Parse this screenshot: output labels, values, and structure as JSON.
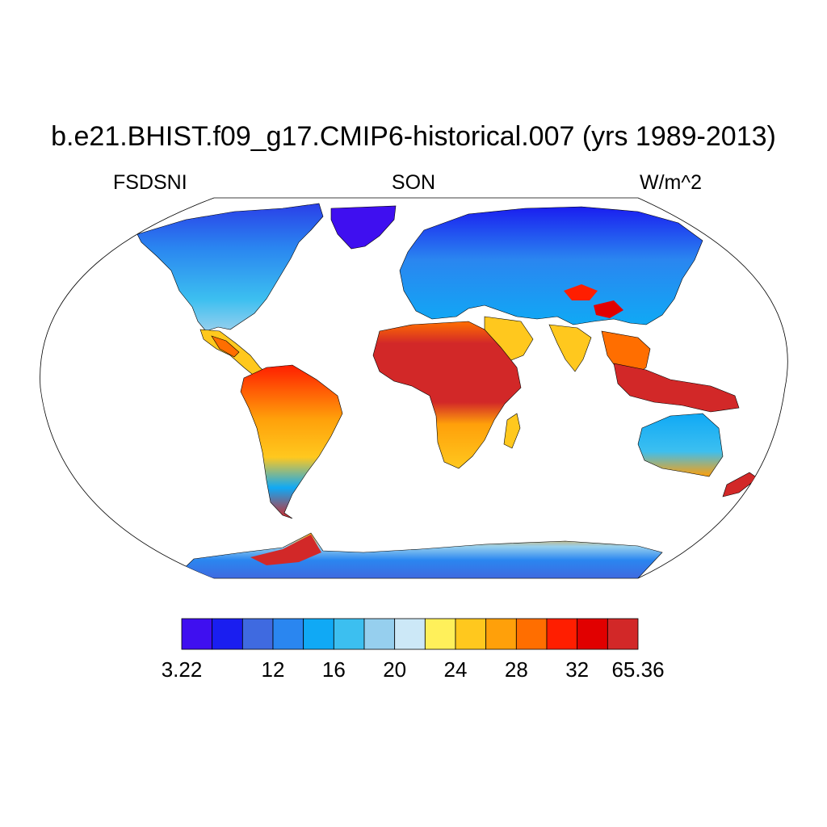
{
  "title": "b.e21.BHIST.f09_g17.CMIP6-historical.007 (yrs 1989-2013)",
  "left_string": "FSDSNI",
  "center_string": "SON",
  "right_string": "W/m^2",
  "projection": "Robinson",
  "colorbar": {
    "colors": [
      "#3f0ff0",
      "#1a1ef0",
      "#3f6ae0",
      "#2a86f0",
      "#10a9f5",
      "#3cbff0",
      "#96cfee",
      "#cce8f7",
      "#fff05a",
      "#ffc81e",
      "#ffa00a",
      "#ff6e00",
      "#ff1e00",
      "#e10000",
      "#d22828"
    ],
    "labels": [
      {
        "text": "3.22",
        "boundary": 0
      },
      {
        "text": "12",
        "boundary": 3
      },
      {
        "text": "16",
        "boundary": 5
      },
      {
        "text": "20",
        "boundary": 7
      },
      {
        "text": "24",
        "boundary": 9
      },
      {
        "text": "28",
        "boundary": 11
      },
      {
        "text": "32",
        "boundary": 13
      },
      {
        "text": "65.36",
        "boundary": 15
      }
    ]
  }
}
